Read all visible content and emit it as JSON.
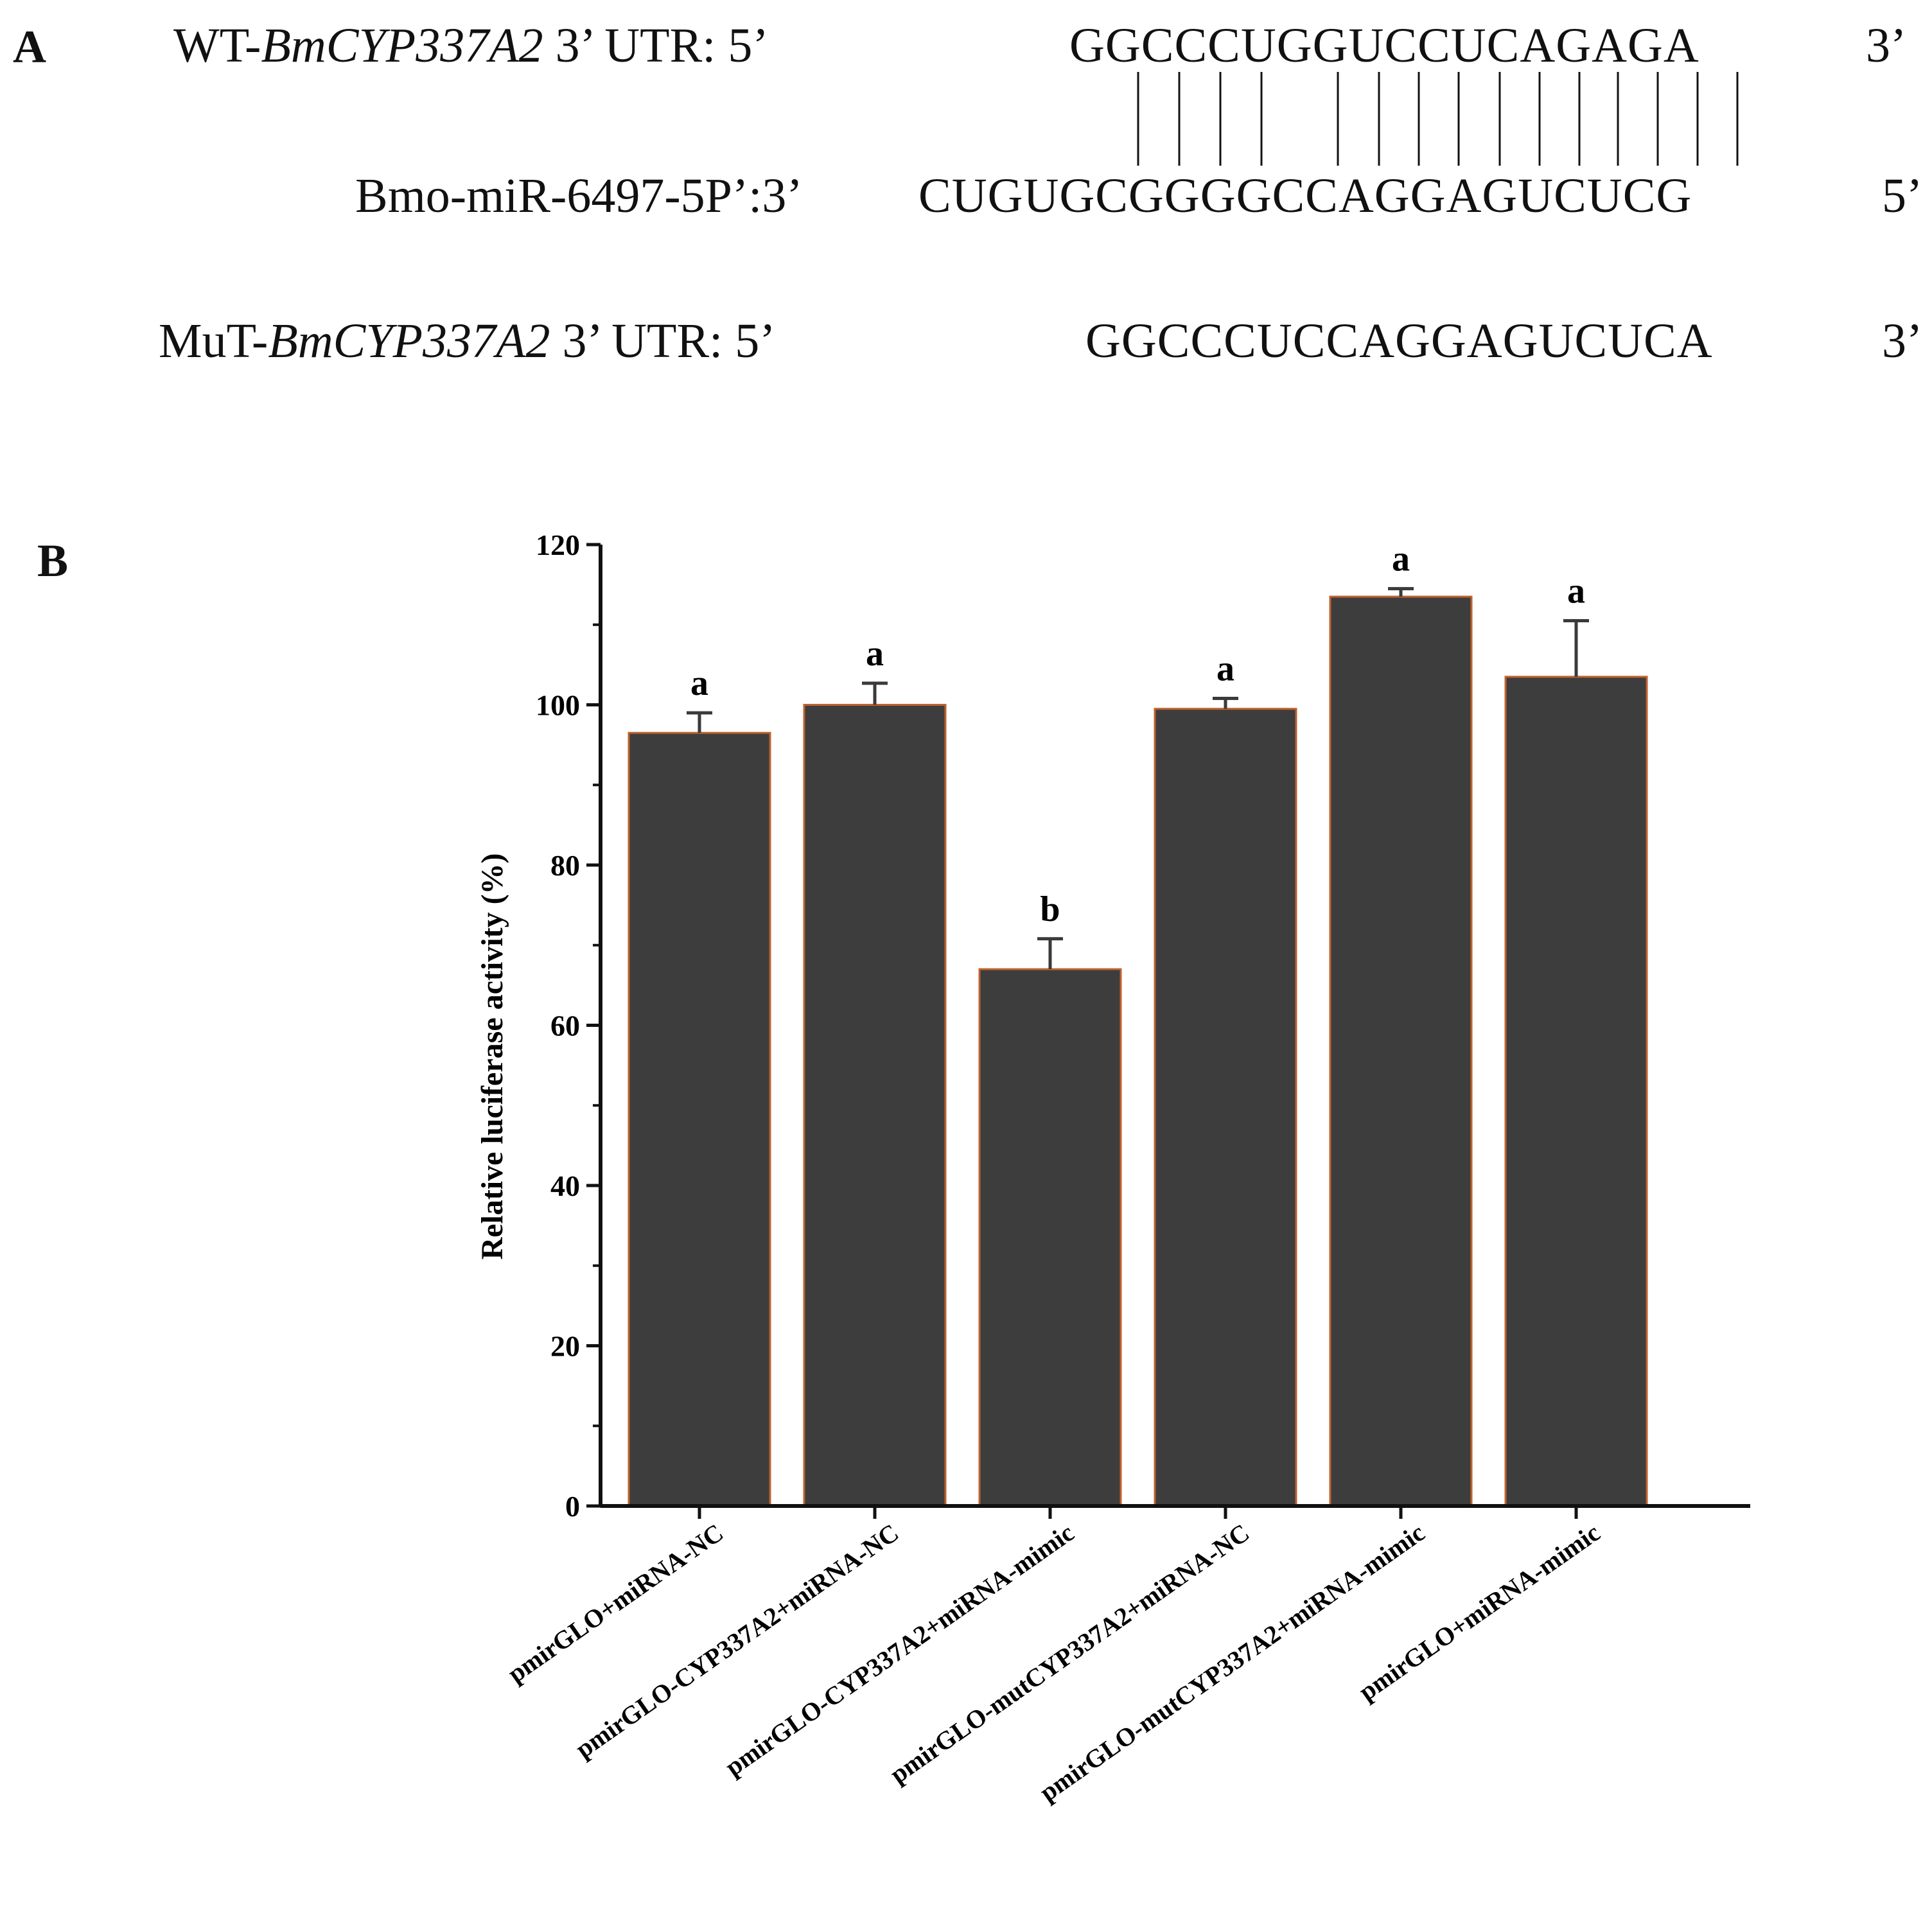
{
  "panel_a": {
    "label": "A",
    "wt": {
      "prefix": "WT-",
      "gene": "BmCYP337A2",
      "suffix": " 3’ UTR: 5’",
      "sequence": "GGCCCUGGUCCUCAGAGA",
      "end": "3’"
    },
    "mirna": {
      "text": "Bmo-miR-6497-5P’:3’",
      "sequence": "CUGUGCGGGGCCAGGAGUCUCG",
      "end": "5’"
    },
    "mut": {
      "prefix": "MuT-",
      "gene": "BmCYP337A2",
      "suffix": " 3’ UTR: 5’",
      "sequence": "GGCCCUCCAGGAGUCUCA",
      "end": "3’"
    }
  },
  "panel_b_label": "B",
  "chart_data": {
    "type": "bar",
    "categories": [
      "pmirGLO+miRNA-NC",
      "pmirGLO-CYP337A2+miRNA-NC",
      "pmirGLO-CYP337A2+miRNA-mimic",
      "pmirGLO-mutCYP337A2+miRNA-NC",
      "pmirGLO-mutCYP337A2+miRNA-mimic",
      "pmirGLO+miRNA-mimic"
    ],
    "values": [
      96.5,
      100.0,
      67.0,
      99.5,
      113.5,
      103.5
    ],
    "error": [
      2.5,
      2.7,
      3.8,
      1.3,
      1.0,
      7.0
    ],
    "significance_letters": [
      "a",
      "a",
      "b",
      "a",
      "a",
      "a"
    ],
    "title": "",
    "xlabel": "",
    "ylabel": "Relative luciferase activity (%)",
    "ylim": [
      0,
      120
    ],
    "yticks": [
      0,
      20,
      40,
      60,
      80,
      100,
      120
    ],
    "bar_color": "#3d3d3d",
    "bar_edge_color": "#c0622e",
    "grid": false,
    "legend": "none"
  }
}
